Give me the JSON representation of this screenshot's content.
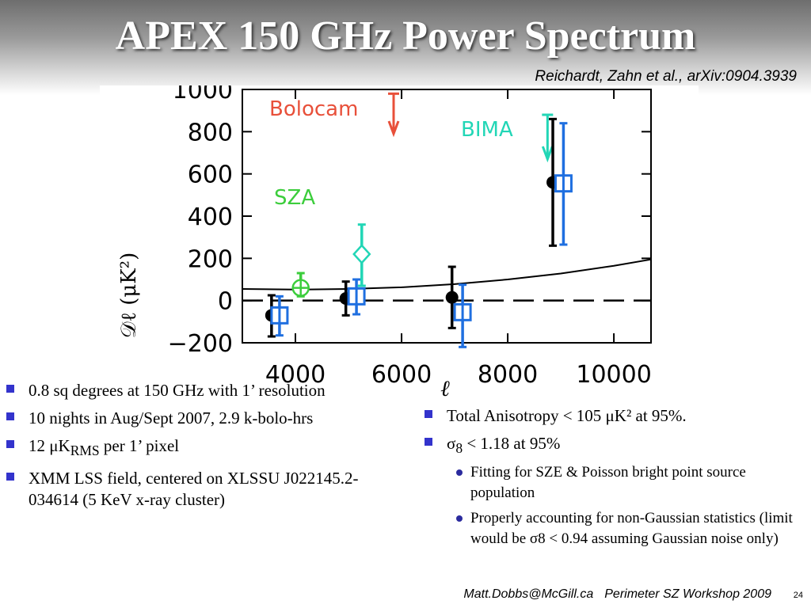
{
  "slide": {
    "title": "APEX 150 GHz Power Spectrum",
    "citation": "Reichardt, Zahn et al., arXiv:0904.3939",
    "left_bullets": [
      {
        "text": "0.8 sq degrees at 150 GHz with 1’ resolution"
      },
      {
        "text": "10 nights in Aug/Sept 2007, 2.9 k-bolo-hrs"
      },
      {
        "pre": "12 μK",
        "sub": "RMS",
        "post": " per 1’ pixel"
      },
      {
        "text": "XMM LSS field, centered on XLSSU J022145.2-034614 (5 KeV x-ray cluster)"
      }
    ],
    "right_bullets": [
      {
        "text": "Total Anisotropy < 105 μK² at 95%."
      },
      {
        "pre": " σ",
        "sub": "8",
        "post": " < 1.18 at 95%"
      }
    ],
    "sub_bullets": [
      "Fitting for SZE & Poisson bright point source population",
      "Properly accounting for non-Gaussian statistics (limit would be σ8 < 0.94 assuming Gaussian noise only)"
    ],
    "footer_email": "Matt.Dobbs@McGill.ca",
    "footer_event": "Perimeter SZ Workshop 2009",
    "page_number": "24"
  },
  "chart_data": {
    "type": "scatter",
    "xlabel": "ℓ",
    "ylabel": "𝒟ℓ   (μK²)",
    "xlim": [
      3000,
      10700
    ],
    "ylim": [
      -200,
      1000
    ],
    "xticks": [
      4000,
      6000,
      8000,
      10000
    ],
    "yticks": [
      -200,
      0,
      200,
      400,
      600,
      800,
      1000
    ],
    "yticklabels": [
      "−200",
      "0",
      "200",
      "400",
      "600",
      "800",
      "1000"
    ],
    "annotations": [
      {
        "text": "Bolocam",
        "color": "#e8503a"
      },
      {
        "text": "BIMA",
        "color": "#22d6b6"
      },
      {
        "text": "SZA",
        "color": "#3ccd3c"
      }
    ],
    "series": [
      {
        "marker": "filled-circle",
        "color": "#000000",
        "points": [
          {
            "x": 3550,
            "y": -70,
            "ylo": -170,
            "yhi": 25
          },
          {
            "x": 4950,
            "y": 10,
            "ylo": -70,
            "yhi": 90
          },
          {
            "x": 6950,
            "y": 15,
            "ylo": -130,
            "yhi": 160
          },
          {
            "x": 8850,
            "y": 560,
            "ylo": 260,
            "yhi": 860
          }
        ]
      },
      {
        "marker": "open-square",
        "color": "#1f6fe0",
        "points": [
          {
            "x": 3700,
            "y": -70,
            "ylo": -165,
            "yhi": 20
          },
          {
            "x": 5150,
            "y": 20,
            "ylo": -65,
            "yhi": 100
          },
          {
            "x": 7150,
            "y": -55,
            "ylo": -220,
            "yhi": 75
          },
          {
            "x": 9050,
            "y": 555,
            "ylo": 265,
            "yhi": 840
          }
        ]
      },
      {
        "marker": "open-circle-cross",
        "color": "#3ccd3c",
        "points": [
          {
            "x": 4100,
            "y": 60,
            "ylo": 20,
            "yhi": 130
          }
        ]
      },
      {
        "marker": "open-diamond",
        "color": "#22d6b6",
        "points": [
          {
            "x": 5250,
            "y": 220,
            "ylo": 70,
            "yhi": 360
          }
        ]
      }
    ],
    "upper_limits": [
      {
        "x": 5850,
        "y_top": 980,
        "y_bottom": 790,
        "color": "#e8503a"
      },
      {
        "x": 8750,
        "y_top": 880,
        "y_bottom": 670,
        "color": "#22d6b6"
      }
    ],
    "model_curve": {
      "x": [
        3000,
        4000,
        5000,
        6000,
        7000,
        8000,
        9000,
        10000,
        10700
      ],
      "y": [
        55,
        52,
        55,
        63,
        78,
        100,
        128,
        165,
        195
      ]
    },
    "zero_line": {
      "y": 0,
      "style": "dashed"
    }
  }
}
